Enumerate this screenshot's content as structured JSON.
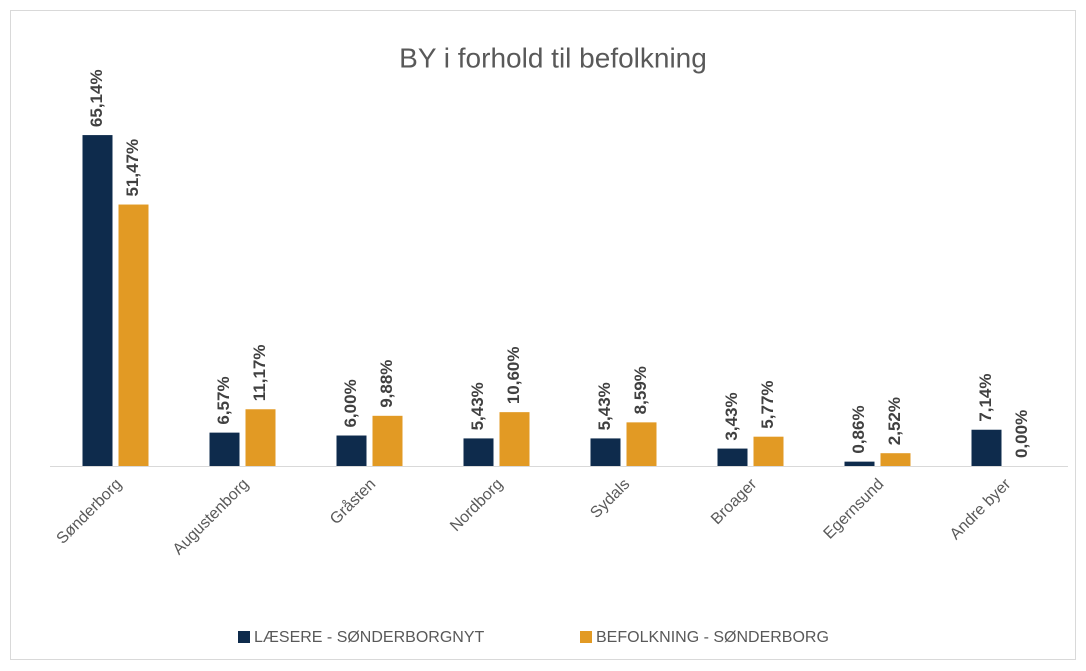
{
  "chart_data": {
    "type": "bar",
    "title": "BY i forhold til befolkning",
    "categories": [
      "Sønderborg",
      "Augustenborg",
      "Gråsten",
      "Nordborg",
      "Sydals",
      "Broager",
      "Egernsund",
      "Andre byer"
    ],
    "series": [
      {
        "name": "LÆSERE - SØNDERBORGNYT",
        "color": "#0e2b4c",
        "values": [
          65.14,
          6.57,
          6.0,
          5.43,
          5.43,
          3.43,
          0.86,
          7.14
        ],
        "value_labels": [
          "65,14%",
          "6,57%",
          "6,00%",
          "5,43%",
          "5,43%",
          "3,43%",
          "0,86%",
          "7,14%"
        ]
      },
      {
        "name": "BEFOLKNING - SØNDERBORG",
        "color": "#e29a24",
        "values": [
          51.47,
          11.17,
          9.88,
          10.6,
          8.59,
          5.77,
          2.52,
          0.0
        ],
        "value_labels": [
          "51,47%",
          "11,17%",
          "9,88%",
          "10,60%",
          "8,59%",
          "5,77%",
          "2,52%",
          "0,00%"
        ]
      }
    ]
  }
}
